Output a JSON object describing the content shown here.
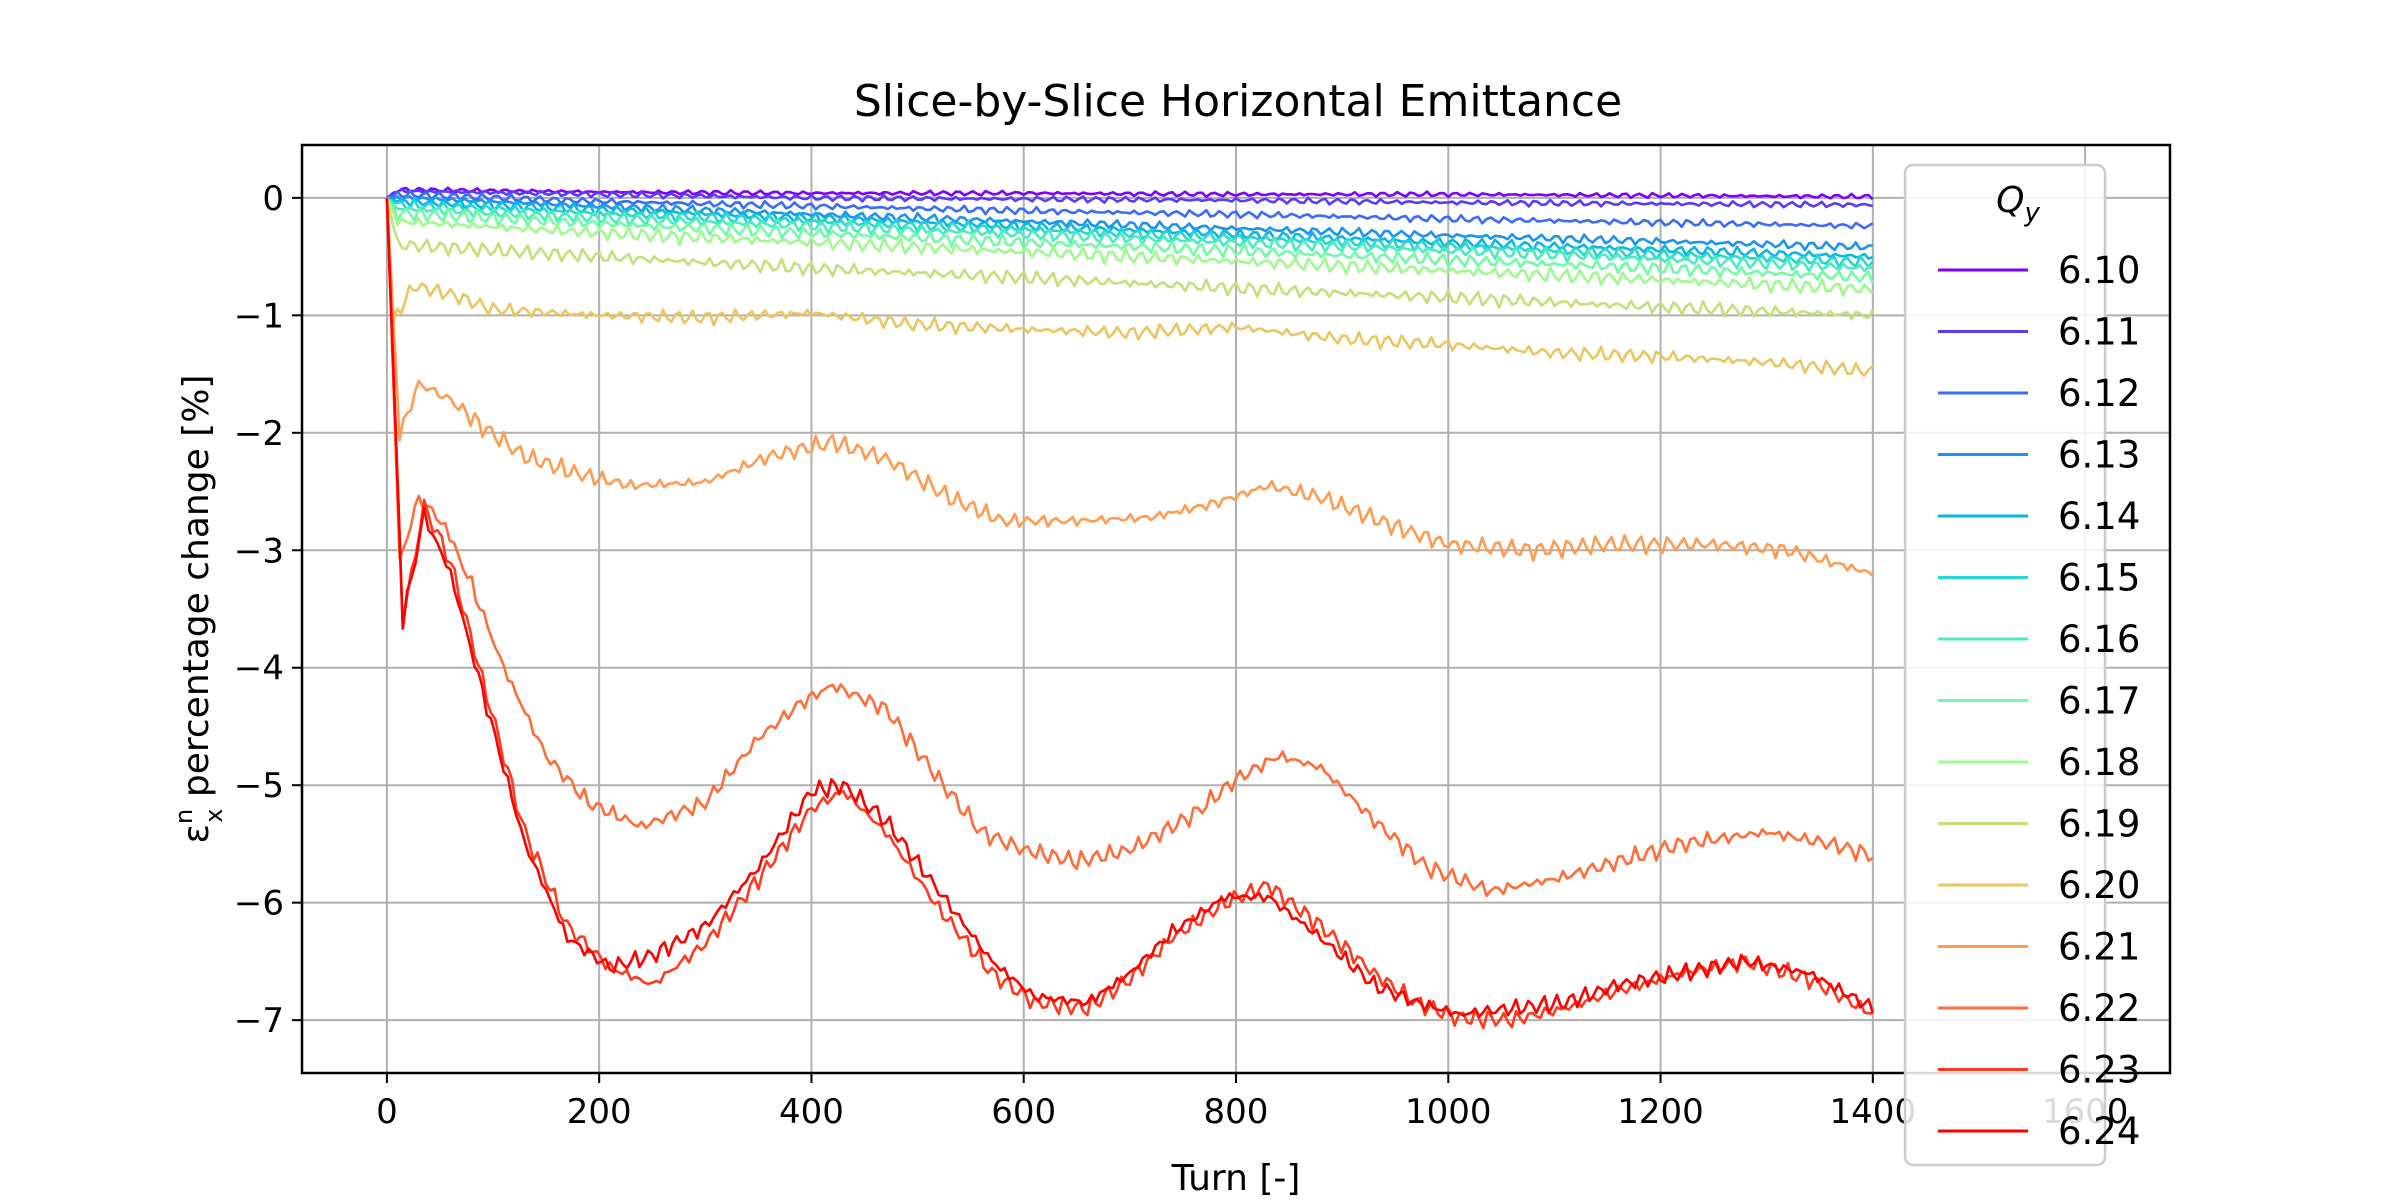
{
  "chart_data": {
    "type": "line",
    "title": "Slice-by-Slice Horizontal Emittance",
    "xlabel": "Turn [-]",
    "ylabel_main": "ε",
    "ylabel_sub": "x",
    "ylabel_sup": "n",
    "ylabel_rest": " percentage change [%]",
    "xlim": [
      -80,
      1680
    ],
    "ylim": [
      -7.45,
      0.45
    ],
    "xticks": [
      0,
      200,
      400,
      600,
      800,
      1000,
      1200,
      1400,
      1600
    ],
    "xtick_labels": [
      "0",
      "200",
      "400",
      "600",
      "800",
      "1000",
      "1200",
      "1400",
      "1600"
    ],
    "yticks": [
      0,
      -1,
      -2,
      -3,
      -4,
      -5,
      -6,
      -7
    ],
    "ytick_labels": [
      "0",
      "−1",
      "−2",
      "−3",
      "−4",
      "−5",
      "−6",
      "−7"
    ],
    "grid": true,
    "legend_placement": "right",
    "legend_title_main": "Q",
    "legend_title_sub": "y",
    "series": [
      {
        "name": "6.10",
        "color": "#7f00ff",
        "points": [
          [
            0,
            0
          ],
          [
            10,
            0.07
          ],
          [
            200,
            0.05
          ],
          [
            400,
            0.04
          ],
          [
            600,
            0.04
          ],
          [
            800,
            0.03
          ],
          [
            1000,
            0.03
          ],
          [
            1200,
            0.02
          ],
          [
            1400,
            0.01
          ]
        ]
      },
      {
        "name": "6.11",
        "color": "#5a3bfc",
        "points": [
          [
            0,
            0
          ],
          [
            10,
            0.06
          ],
          [
            200,
            0.03
          ],
          [
            400,
            0.0
          ],
          [
            600,
            -0.01
          ],
          [
            800,
            -0.02
          ],
          [
            1000,
            -0.04
          ],
          [
            1200,
            -0.05
          ],
          [
            1400,
            -0.06
          ]
        ]
      },
      {
        "name": "6.12",
        "color": "#3a6cf7",
        "points": [
          [
            0,
            0
          ],
          [
            10,
            0.03
          ],
          [
            200,
            -0.03
          ],
          [
            400,
            -0.07
          ],
          [
            600,
            -0.11
          ],
          [
            800,
            -0.14
          ],
          [
            1000,
            -0.18
          ],
          [
            1200,
            -0.21
          ],
          [
            1400,
            -0.24
          ]
        ]
      },
      {
        "name": "6.13",
        "color": "#1e93ed",
        "points": [
          [
            0,
            0
          ],
          [
            10,
            0.0
          ],
          [
            200,
            -0.07
          ],
          [
            400,
            -0.14
          ],
          [
            600,
            -0.2
          ],
          [
            800,
            -0.26
          ],
          [
            1000,
            -0.32
          ],
          [
            1200,
            -0.37
          ],
          [
            1400,
            -0.42
          ]
        ]
      },
      {
        "name": "6.14",
        "color": "#0db6e2",
        "points": [
          [
            0,
            0
          ],
          [
            10,
            -0.03
          ],
          [
            200,
            -0.1
          ],
          [
            400,
            -0.17
          ],
          [
            600,
            -0.24
          ],
          [
            800,
            -0.31
          ],
          [
            1000,
            -0.38
          ],
          [
            1200,
            -0.44
          ],
          [
            1400,
            -0.5
          ]
        ]
      },
      {
        "name": "6.15",
        "color": "#27d5d2",
        "points": [
          [
            0,
            0
          ],
          [
            10,
            -0.06
          ],
          [
            200,
            -0.13
          ],
          [
            400,
            -0.2
          ],
          [
            600,
            -0.27
          ],
          [
            800,
            -0.34
          ],
          [
            1000,
            -0.41
          ],
          [
            1200,
            -0.48
          ],
          [
            1400,
            -0.55
          ]
        ]
      },
      {
        "name": "6.16",
        "color": "#4aecbf",
        "points": [
          [
            0,
            0
          ],
          [
            10,
            -0.09
          ],
          [
            200,
            -0.17
          ],
          [
            400,
            -0.24
          ],
          [
            600,
            -0.31
          ],
          [
            800,
            -0.38
          ],
          [
            1000,
            -0.45
          ],
          [
            1200,
            -0.52
          ],
          [
            1400,
            -0.6
          ]
        ]
      },
      {
        "name": "6.17",
        "color": "#72faa8",
        "points": [
          [
            0,
            0
          ],
          [
            10,
            -0.13
          ],
          [
            200,
            -0.22
          ],
          [
            400,
            -0.3
          ],
          [
            600,
            -0.38
          ],
          [
            800,
            -0.45
          ],
          [
            1000,
            -0.53
          ],
          [
            1200,
            -0.6
          ],
          [
            1400,
            -0.68
          ]
        ]
      },
      {
        "name": "6.18",
        "color": "#a0f98e",
        "points": [
          [
            0,
            0
          ],
          [
            10,
            -0.2
          ],
          [
            200,
            -0.3
          ],
          [
            400,
            -0.38
          ],
          [
            600,
            -0.46
          ],
          [
            800,
            -0.54
          ],
          [
            1000,
            -0.62
          ],
          [
            1200,
            -0.7
          ],
          [
            1400,
            -0.78
          ]
        ]
      },
      {
        "name": "6.19",
        "color": "#c4e07a",
        "points": [
          [
            0,
            0
          ],
          [
            10,
            -0.4
          ],
          [
            50,
            -0.42
          ],
          [
            200,
            -0.5
          ],
          [
            400,
            -0.6
          ],
          [
            600,
            -0.68
          ],
          [
            800,
            -0.77
          ],
          [
            1000,
            -0.85
          ],
          [
            1200,
            -0.93
          ],
          [
            1400,
            -1.0
          ]
        ]
      },
      {
        "name": "6.20",
        "color": "#eac563",
        "points": [
          [
            0,
            0
          ],
          [
            6,
            -1.05
          ],
          [
            25,
            -0.75
          ],
          [
            60,
            -0.82
          ],
          [
            100,
            -0.95
          ],
          [
            200,
            -1.0
          ],
          [
            300,
            -1.02
          ],
          [
            400,
            -0.98
          ],
          [
            500,
            -1.08
          ],
          [
            600,
            -1.12
          ],
          [
            700,
            -1.15
          ],
          [
            800,
            -1.1
          ],
          [
            900,
            -1.2
          ],
          [
            1000,
            -1.25
          ],
          [
            1100,
            -1.32
          ],
          [
            1200,
            -1.35
          ],
          [
            1300,
            -1.4
          ],
          [
            1400,
            -1.48
          ]
        ]
      },
      {
        "name": "6.21",
        "color": "#ff9c51",
        "points": [
          [
            0,
            0
          ],
          [
            12,
            -2.02
          ],
          [
            30,
            -1.58
          ],
          [
            60,
            -1.72
          ],
          [
            90,
            -1.95
          ],
          [
            130,
            -2.2
          ],
          [
            180,
            -2.35
          ],
          [
            230,
            -2.45
          ],
          [
            300,
            -2.42
          ],
          [
            360,
            -2.2
          ],
          [
            420,
            -2.08
          ],
          [
            470,
            -2.22
          ],
          [
            530,
            -2.55
          ],
          [
            580,
            -2.75
          ],
          [
            650,
            -2.75
          ],
          [
            720,
            -2.72
          ],
          [
            780,
            -2.6
          ],
          [
            830,
            -2.45
          ],
          [
            880,
            -2.55
          ],
          [
            950,
            -2.8
          ],
          [
            1000,
            -2.95
          ],
          [
            1080,
            -3.0
          ],
          [
            1150,
            -2.95
          ],
          [
            1250,
            -2.95
          ],
          [
            1320,
            -3.0
          ],
          [
            1400,
            -3.2
          ]
        ]
      },
      {
        "name": "6.22",
        "color": "#ff6d3a",
        "points": [
          [
            0,
            0
          ],
          [
            12,
            -3.1
          ],
          [
            30,
            -2.55
          ],
          [
            55,
            -2.8
          ],
          [
            80,
            -3.3
          ],
          [
            110,
            -4.0
          ],
          [
            150,
            -4.75
          ],
          [
            190,
            -5.15
          ],
          [
            240,
            -5.35
          ],
          [
            300,
            -5.15
          ],
          [
            350,
            -4.6
          ],
          [
            390,
            -4.3
          ],
          [
            420,
            -4.15
          ],
          [
            470,
            -4.35
          ],
          [
            520,
            -4.95
          ],
          [
            560,
            -5.4
          ],
          [
            600,
            -5.55
          ],
          [
            650,
            -5.65
          ],
          [
            700,
            -5.55
          ],
          [
            760,
            -5.25
          ],
          [
            800,
            -4.95
          ],
          [
            840,
            -4.75
          ],
          [
            880,
            -4.85
          ],
          [
            930,
            -5.3
          ],
          [
            980,
            -5.7
          ],
          [
            1040,
            -5.9
          ],
          [
            1100,
            -5.8
          ],
          [
            1160,
            -5.65
          ],
          [
            1220,
            -5.5
          ],
          [
            1300,
            -5.4
          ],
          [
            1360,
            -5.5
          ],
          [
            1400,
            -5.6
          ]
        ]
      },
      {
        "name": "6.23",
        "color": "#ff3a1e",
        "points": [
          [
            0,
            0
          ],
          [
            15,
            -3.6
          ],
          [
            35,
            -2.62
          ],
          [
            60,
            -3.1
          ],
          [
            90,
            -4.1
          ],
          [
            130,
            -5.4
          ],
          [
            170,
            -6.2
          ],
          [
            210,
            -6.55
          ],
          [
            250,
            -6.7
          ],
          [
            300,
            -6.35
          ],
          [
            350,
            -5.8
          ],
          [
            400,
            -5.2
          ],
          [
            430,
            -5.05
          ],
          [
            470,
            -5.4
          ],
          [
            520,
            -6.05
          ],
          [
            570,
            -6.6
          ],
          [
            610,
            -6.85
          ],
          [
            660,
            -6.9
          ],
          [
            700,
            -6.65
          ],
          [
            740,
            -6.3
          ],
          [
            790,
            -6.0
          ],
          [
            830,
            -5.85
          ],
          [
            880,
            -6.2
          ],
          [
            930,
            -6.6
          ],
          [
            970,
            -6.85
          ],
          [
            1010,
            -6.98
          ],
          [
            1060,
            -7.0
          ],
          [
            1110,
            -6.9
          ],
          [
            1160,
            -6.75
          ],
          [
            1220,
            -6.6
          ],
          [
            1280,
            -6.5
          ],
          [
            1340,
            -6.65
          ],
          [
            1400,
            -6.95
          ]
        ]
      },
      {
        "name": "6.24",
        "color": "#ff0000",
        "points": [
          [
            0,
            0
          ],
          [
            15,
            -3.6
          ],
          [
            35,
            -2.7
          ],
          [
            60,
            -3.2
          ],
          [
            90,
            -4.2
          ],
          [
            130,
            -5.5
          ],
          [
            170,
            -6.3
          ],
          [
            210,
            -6.55
          ],
          [
            250,
            -6.45
          ],
          [
            300,
            -6.2
          ],
          [
            350,
            -5.7
          ],
          [
            400,
            -5.05
          ],
          [
            430,
            -5.0
          ],
          [
            470,
            -5.3
          ],
          [
            520,
            -5.9
          ],
          [
            570,
            -6.5
          ],
          [
            610,
            -6.8
          ],
          [
            660,
            -6.85
          ],
          [
            700,
            -6.6
          ],
          [
            740,
            -6.25
          ],
          [
            790,
            -5.95
          ],
          [
            830,
            -5.95
          ],
          [
            880,
            -6.3
          ],
          [
            930,
            -6.7
          ],
          [
            970,
            -6.85
          ],
          [
            1010,
            -6.95
          ],
          [
            1060,
            -6.9
          ],
          [
            1110,
            -6.85
          ],
          [
            1160,
            -6.7
          ],
          [
            1220,
            -6.6
          ],
          [
            1280,
            -6.5
          ],
          [
            1340,
            -6.6
          ],
          [
            1400,
            -6.9
          ]
        ]
      }
    ]
  }
}
